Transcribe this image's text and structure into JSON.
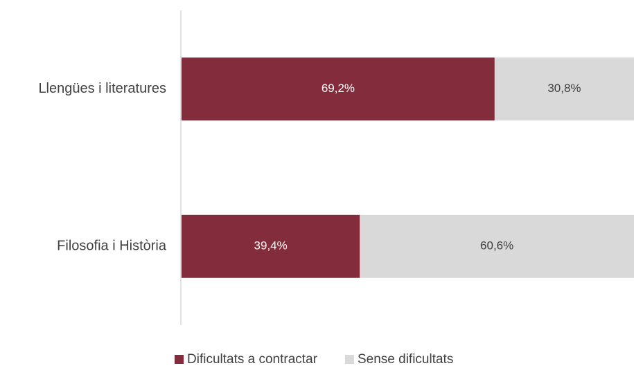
{
  "chart_data": {
    "type": "bar",
    "orientation": "horizontal",
    "stacked": true,
    "categories": [
      "Llengües i literatures",
      "Filosofia i Història"
    ],
    "series": [
      {
        "name": "Dificultats a contractar",
        "color": "#832c3b",
        "values": [
          69.2,
          39.4
        ],
        "value_labels": [
          "69,2%",
          "39,4%"
        ]
      },
      {
        "name": "Sense dificultats",
        "color": "#d9d9d9",
        "values": [
          30.8,
          60.6
        ],
        "value_labels": [
          "30,8%",
          "60,6%"
        ]
      }
    ],
    "xlim": [
      0,
      100
    ],
    "legend": "bottom"
  }
}
